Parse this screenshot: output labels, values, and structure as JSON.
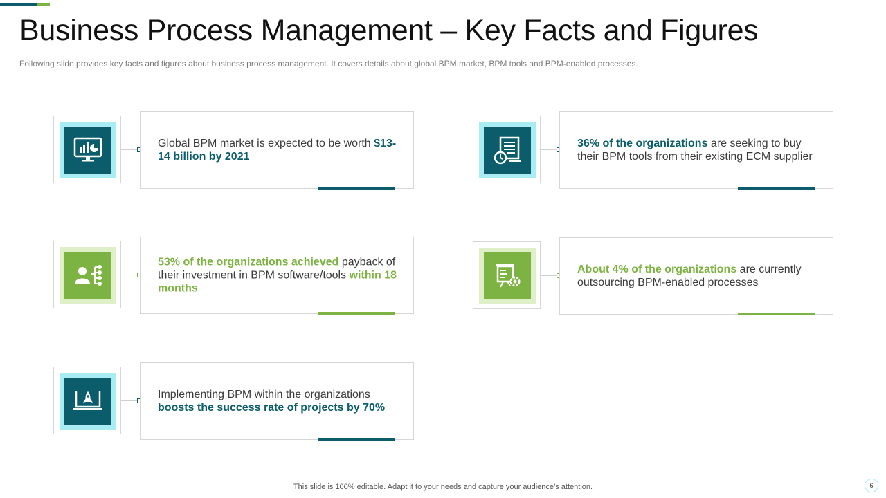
{
  "slide": {
    "title": "Business Process Management – Key Facts and Figures",
    "subtitle": "Following slide provides  key facts and figures  about business process management. It covers details about global BPM market, BPM tools and BPM-enabled processes.",
    "footer": "This slide is 100% editable. Adapt it to your needs and capture your audience’s attention.",
    "page_number": "6"
  },
  "colors": {
    "teal": "#0b5d6b",
    "teal_light": "#a9ecf4",
    "green": "#7cb342",
    "green_light": "#dff0c9"
  },
  "facts": [
    {
      "theme": "teal",
      "icon": "monitor-chart-icon",
      "t1": "Global BPM market is expected to be worth ",
      "h1": "$13-14 billion  by 2021",
      "t2": "",
      "h2": ""
    },
    {
      "theme": "teal",
      "icon": "document-clock-icon",
      "t1": "",
      "h1": "36% of the organizations",
      "t2": " are seeking to buy their BPM tools from their existing ECM supplier",
      "h2": ""
    },
    {
      "theme": "green",
      "icon": "user-network-icon",
      "t1": "",
      "h1": "53% of the organizations achieved",
      "t2": " payback of their investment  in BPM software/tools ",
      "h2": "within 18 months"
    },
    {
      "theme": "green",
      "icon": "presentation-gear-icon",
      "t1": "",
      "h1": "About 4% of the organizations",
      "t2": " are currently outsourcing  BPM-enabled processes",
      "h2": ""
    },
    {
      "theme": "teal",
      "icon": "laptop-rocket-icon",
      "t1": "Implementing  BPM within the organizations ",
      "h1": "boosts the success rate of projects by 70%",
      "t2": "",
      "h2": ""
    }
  ]
}
